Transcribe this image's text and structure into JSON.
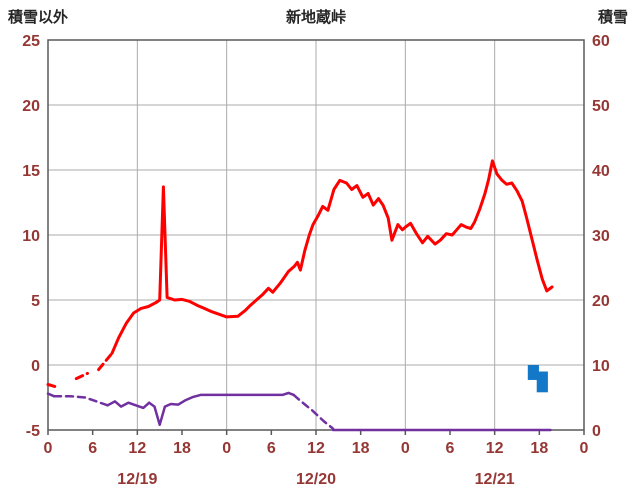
{
  "header": {
    "left_axis_title": "積雪以外",
    "station_title": "新地蔵峠",
    "right_axis_title": "積雪"
  },
  "chart_data": {
    "type": "line",
    "title": "新地蔵峠",
    "left_axis": {
      "title": "積雪以外",
      "min": -5,
      "max": 25,
      "tick_step": 5,
      "tick_labels": [
        "-5",
        "0",
        "5",
        "10",
        "15",
        "20",
        "25"
      ]
    },
    "right_axis": {
      "title": "積雪",
      "min": 0,
      "max": 60,
      "tick_step": 10,
      "tick_labels": [
        "0",
        "10",
        "20",
        "30",
        "40",
        "50",
        "60"
      ]
    },
    "x_axis": {
      "total_hours": 72,
      "tick_every_hours": 6,
      "grid_every_hours": 12,
      "tick_labels": [
        "0",
        "6",
        "12",
        "18",
        "0",
        "6",
        "12",
        "18",
        "0",
        "6",
        "12",
        "18",
        "0"
      ],
      "day_labels": [
        {
          "label": "12/19",
          "center_hour": 12
        },
        {
          "label": "12/20",
          "center_hour": 36
        },
        {
          "label": "12/21",
          "center_hour": 60
        }
      ]
    },
    "colors": {
      "red_series": "#ff0000",
      "purple_series": "#7030a0",
      "snow_bar": "#1478c8",
      "grid": "#ababab",
      "frame": "#595959",
      "tick_text": "#953735",
      "title_text": "#262626"
    },
    "series": [
      {
        "name": "red-line",
        "axis": "left",
        "color": "#ff0000",
        "width": 3,
        "segments": [
          {
            "style": "dashed",
            "points": [
              [
                0,
                -1.5
              ],
              [
                1.2,
                -1.7
              ]
            ]
          },
          {
            "style": "dashed",
            "points": [
              [
                3.8,
                -1.05
              ],
              [
                5.3,
                -0.65
              ]
            ]
          },
          {
            "style": "dashed",
            "points": [
              [
                6.8,
                -0.35
              ],
              [
                8.6,
                0.9
              ]
            ]
          },
          {
            "style": "solid",
            "points": [
              [
                8.6,
                0.9
              ],
              [
                9.5,
                2.1
              ],
              [
                10.5,
                3.2
              ],
              [
                11.5,
                4.0
              ],
              [
                12.5,
                4.35
              ],
              [
                13.5,
                4.5
              ],
              [
                14.5,
                4.8
              ],
              [
                15.0,
                5.0
              ],
              [
                15.5,
                13.7
              ],
              [
                16.0,
                5.2
              ],
              [
                17,
                5.0
              ],
              [
                18,
                5.05
              ],
              [
                19,
                4.9
              ],
              [
                20,
                4.6
              ],
              [
                21,
                4.35
              ],
              [
                22,
                4.1
              ],
              [
                23,
                3.9
              ],
              [
                24,
                3.7
              ],
              [
                25.5,
                3.75
              ],
              [
                26.5,
                4.2
              ],
              [
                27.2,
                4.6
              ],
              [
                28.8,
                5.4
              ],
              [
                29.6,
                5.9
              ],
              [
                30.2,
                5.6
              ],
              [
                31.2,
                6.3
              ],
              [
                32.3,
                7.2
              ],
              [
                33.1,
                7.6
              ],
              [
                33.5,
                7.9
              ],
              [
                33.9,
                7.3
              ],
              [
                34.5,
                8.8
              ],
              [
                35.1,
                10.0
              ],
              [
                35.6,
                10.8
              ],
              [
                36.3,
                11.5
              ],
              [
                36.9,
                12.2
              ],
              [
                37.6,
                11.9
              ],
              [
                38.4,
                13.5
              ],
              [
                39.2,
                14.2
              ],
              [
                40.1,
                14.0
              ],
              [
                40.8,
                13.5
              ],
              [
                41.5,
                13.8
              ],
              [
                42.3,
                12.9
              ],
              [
                43.0,
                13.2
              ],
              [
                43.7,
                12.3
              ],
              [
                44.4,
                12.8
              ],
              [
                45.0,
                12.3
              ],
              [
                45.7,
                11.3
              ],
              [
                46.2,
                9.6
              ],
              [
                47.0,
                10.8
              ],
              [
                47.6,
                10.4
              ],
              [
                48.0,
                10.6
              ],
              [
                48.7,
                10.9
              ],
              [
                49.5,
                10.1
              ],
              [
                50.3,
                9.4
              ],
              [
                51.0,
                9.9
              ],
              [
                52.0,
                9.3
              ],
              [
                52.7,
                9.6
              ],
              [
                53.5,
                10.1
              ],
              [
                54.3,
                10.0
              ],
              [
                54.9,
                10.4
              ],
              [
                55.5,
                10.8
              ],
              [
                56.2,
                10.6
              ],
              [
                56.8,
                10.5
              ],
              [
                57.3,
                11.0
              ],
              [
                58.0,
                12.0
              ],
              [
                58.7,
                13.2
              ],
              [
                59.2,
                14.3
              ],
              [
                59.7,
                15.7
              ],
              [
                60.3,
                14.7
              ],
              [
                61.0,
                14.2
              ],
              [
                61.6,
                13.9
              ],
              [
                62.3,
                14.0
              ],
              [
                63.0,
                13.4
              ],
              [
                63.7,
                12.6
              ],
              [
                64.3,
                11.3
              ],
              [
                65.0,
                9.7
              ],
              [
                65.7,
                8.1
              ],
              [
                66.4,
                6.6
              ],
              [
                67.0,
                5.7
              ],
              [
                67.7,
                6.0
              ]
            ]
          }
        ]
      },
      {
        "name": "purple-line",
        "axis": "left",
        "color": "#7030a0",
        "width": 2.5,
        "segments": [
          {
            "style": "solid",
            "points": [
              [
                0,
                -2.2
              ],
              [
                0.8,
                -2.4
              ]
            ]
          },
          {
            "style": "dashed",
            "points": [
              [
                0.8,
                -2.4
              ],
              [
                3,
                -2.4
              ],
              [
                5,
                -2.5
              ],
              [
                6.5,
                -2.8
              ],
              [
                8,
                -3.1
              ]
            ]
          },
          {
            "style": "solid",
            "points": [
              [
                8,
                -3.1
              ],
              [
                9,
                -2.8
              ],
              [
                9.8,
                -3.2
              ],
              [
                10.8,
                -2.9
              ],
              [
                11.8,
                -3.1
              ],
              [
                12.8,
                -3.3
              ],
              [
                13.6,
                -2.9
              ],
              [
                14.3,
                -3.2
              ],
              [
                15.0,
                -4.6
              ],
              [
                15.7,
                -3.2
              ],
              [
                16.5,
                -3.0
              ],
              [
                17.5,
                -3.05
              ],
              [
                18.5,
                -2.7
              ],
              [
                19.5,
                -2.45
              ],
              [
                20.5,
                -2.3
              ],
              [
                24,
                -2.3
              ],
              [
                28,
                -2.3
              ],
              [
                31.5,
                -2.3
              ],
              [
                32.3,
                -2.15
              ],
              [
                33,
                -2.3
              ]
            ]
          },
          {
            "style": "dashed",
            "points": [
              [
                33,
                -2.3
              ],
              [
                34,
                -2.8
              ],
              [
                35.5,
                -3.5
              ],
              [
                37,
                -4.3
              ],
              [
                38.3,
                -4.9
              ]
            ]
          },
          {
            "style": "solid",
            "points": [
              [
                38.3,
                -5
              ],
              [
                67.5,
                -5
              ]
            ]
          }
        ]
      }
    ],
    "bars": {
      "name": "snow-bars",
      "color": "#1478c8",
      "values_axis": "left",
      "items": [
        {
          "h": 65.2,
          "width_hours": 1.5,
          "top": 0,
          "bottom": -1.15
        },
        {
          "h": 66.4,
          "width_hours": 1.5,
          "top": -0.5,
          "bottom": -2.1
        }
      ]
    }
  }
}
